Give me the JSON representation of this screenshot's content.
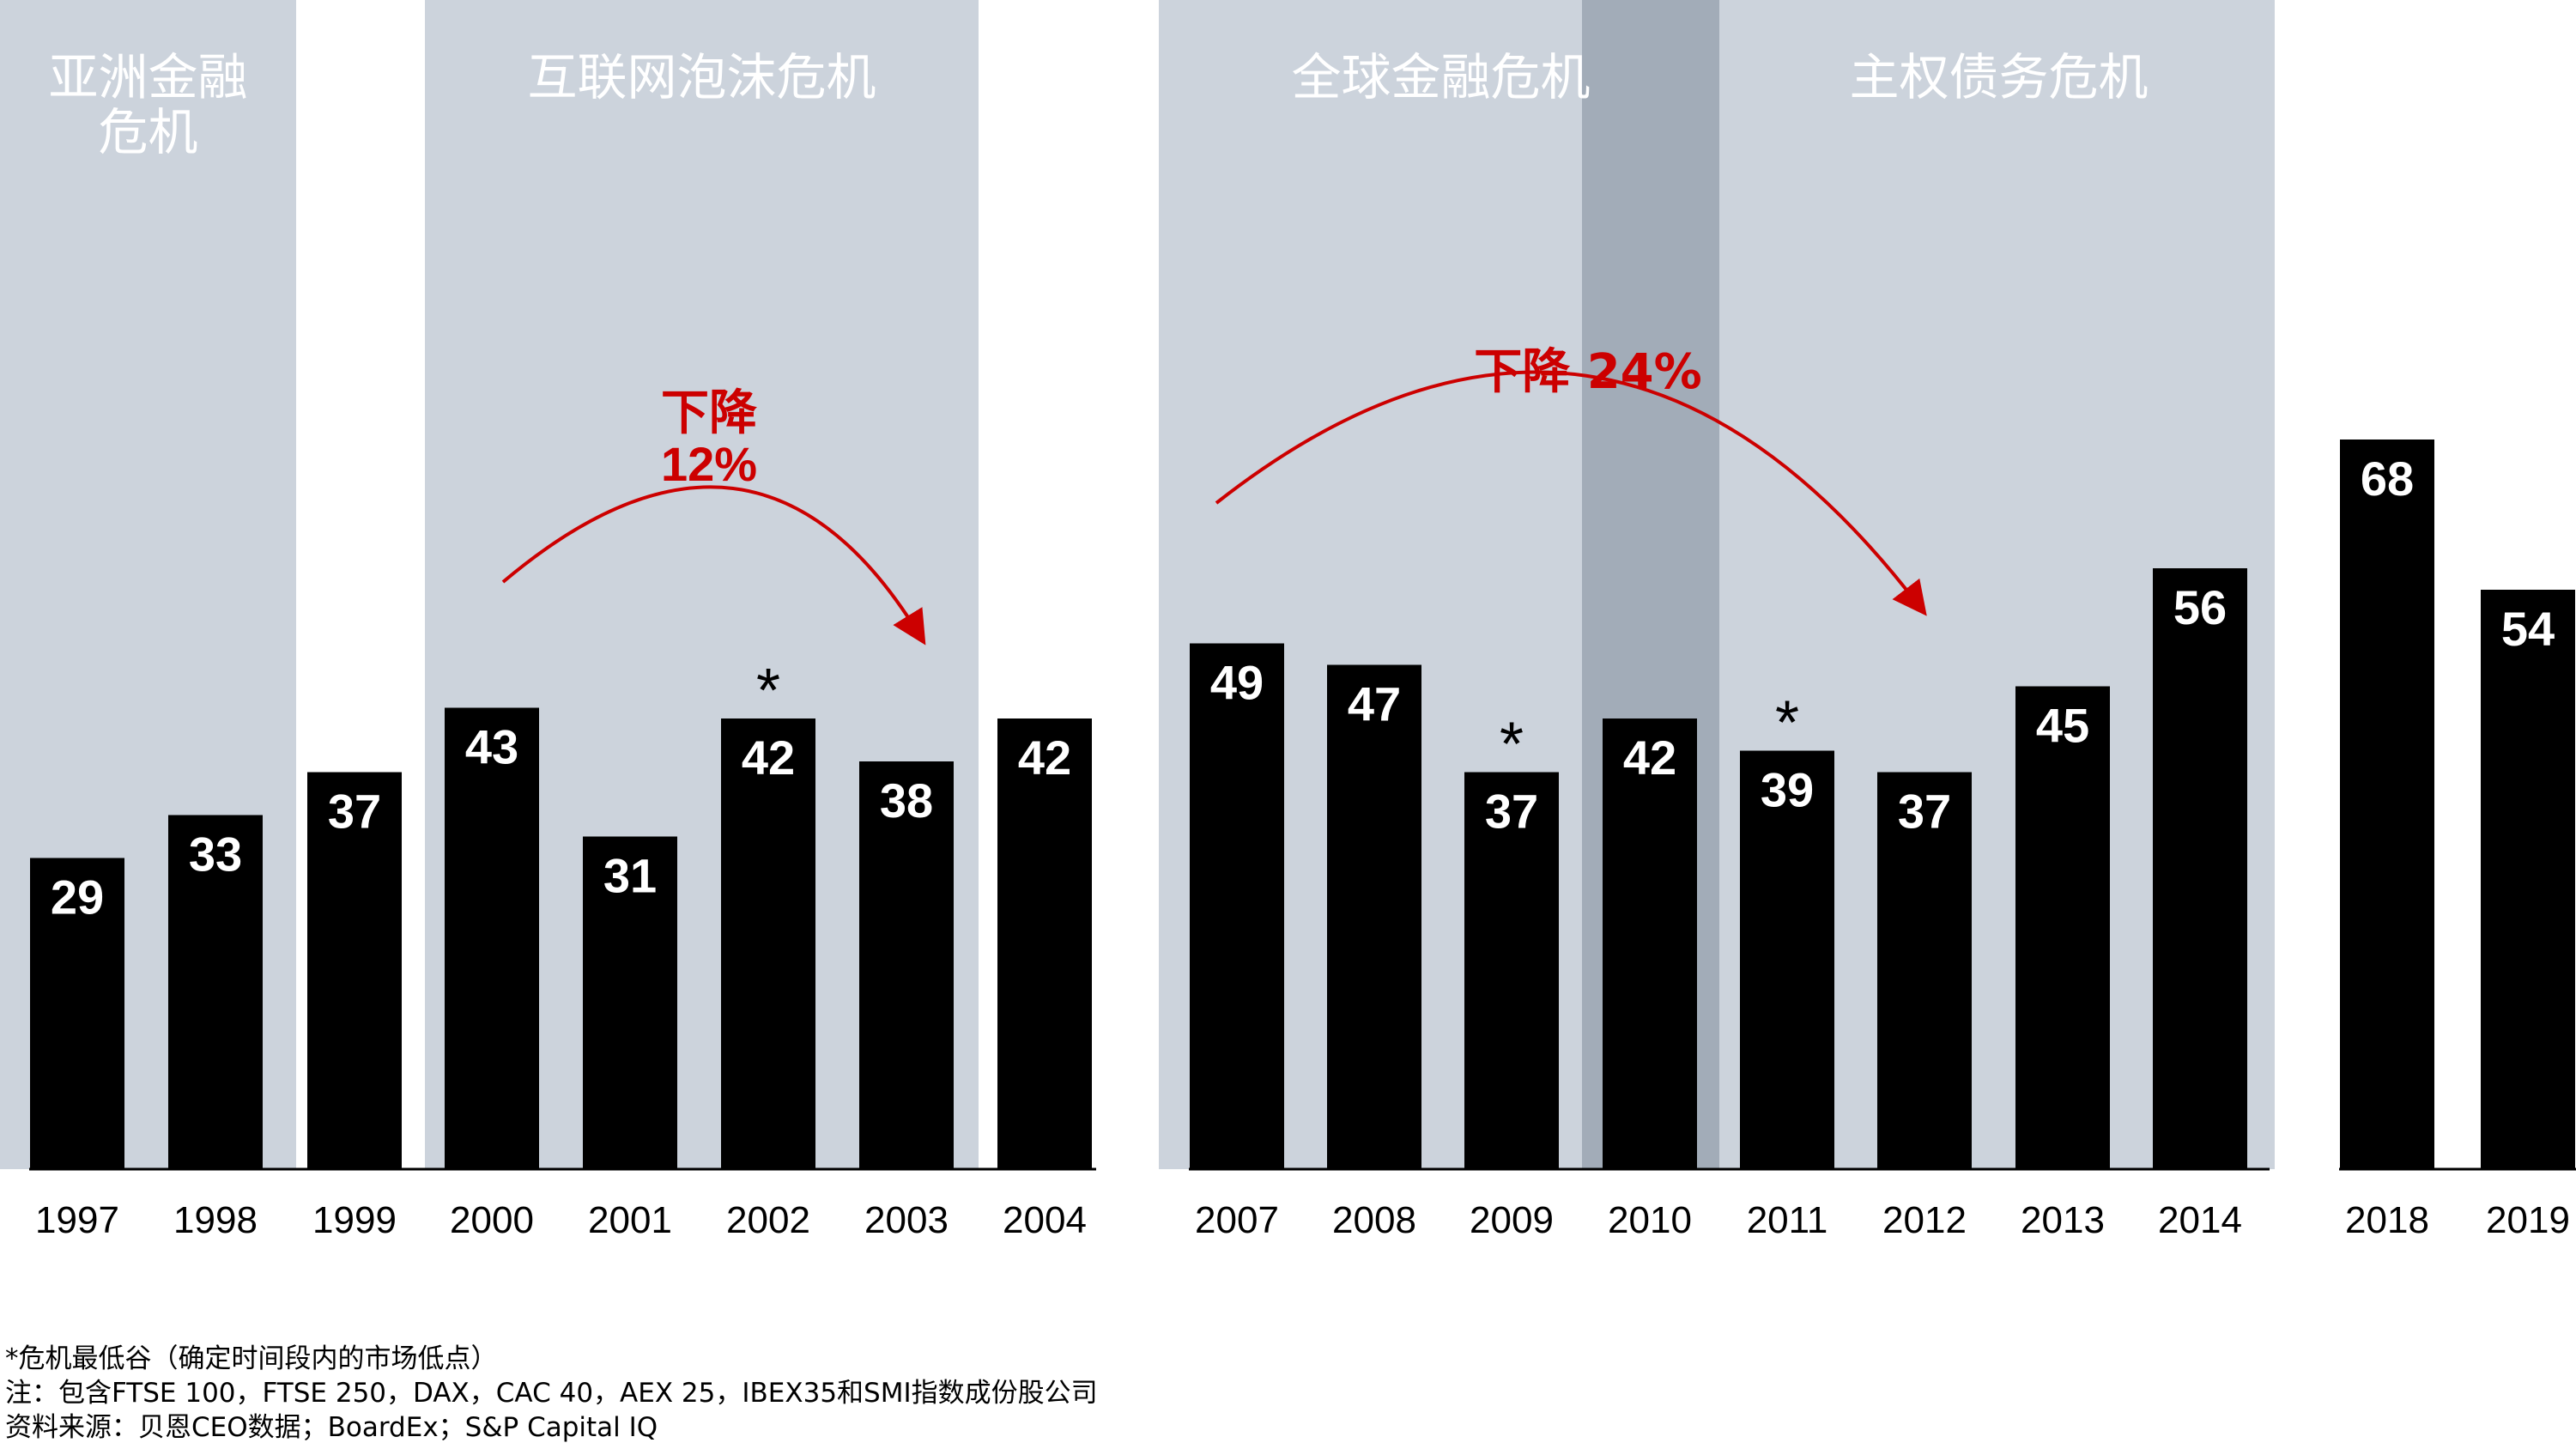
{
  "colors": {
    "bar": "#000000",
    "band": "#ccd3dc",
    "band_overlap": "#a2acb8",
    "annotation": "#cc0000",
    "value_label": "#ffffff",
    "axis_label": "#000000"
  },
  "chart_data": {
    "type": "bar",
    "categories": [
      "1997",
      "1998",
      "1999",
      "2000",
      "2001",
      "2002",
      "2003",
      "2004",
      "2007",
      "2008",
      "2009",
      "2010",
      "2011",
      "2012",
      "2013",
      "2014",
      "2018",
      "2019"
    ],
    "values": [
      29,
      33,
      37,
      43,
      31,
      42,
      38,
      42,
      49,
      47,
      37,
      42,
      39,
      37,
      45,
      56,
      68,
      54
    ],
    "crisis_trough_marker": [
      "2002",
      "2009",
      "2011"
    ],
    "ylim": [
      0,
      75
    ],
    "grid": false,
    "legend": "none",
    "crisis_periods": [
      {
        "label": "亚洲金融危机",
        "years": [
          "1997",
          "1998"
        ]
      },
      {
        "label": "互联网泡沫危机",
        "years": [
          "2000",
          "2001",
          "2002",
          "2003"
        ]
      },
      {
        "label": "全球金融危机",
        "years": [
          "2007",
          "2008",
          "2009",
          "2010"
        ]
      },
      {
        "label": "主权债务危机",
        "years": [
          "2010",
          "2011",
          "2012",
          "2013",
          "2014"
        ]
      }
    ],
    "annotations": [
      {
        "text_line1": "下降",
        "text_line2": "12%",
        "from": "2000",
        "to": "2003"
      },
      {
        "text_line1": "下降 24%",
        "from": "2007",
        "to": "2012"
      }
    ],
    "marker_symbol": "*"
  },
  "footnotes": {
    "line1": "*危机最低谷（确定时间段内的市场低点）",
    "line2": "注：包含FTSE 100，FTSE 250，DAX，CAC 40，AEX 25，IBEX35和SMI指数成份股公司",
    "line3": "资料来源：贝恩CEO数据；BoardEx；S&P Capital IQ"
  }
}
